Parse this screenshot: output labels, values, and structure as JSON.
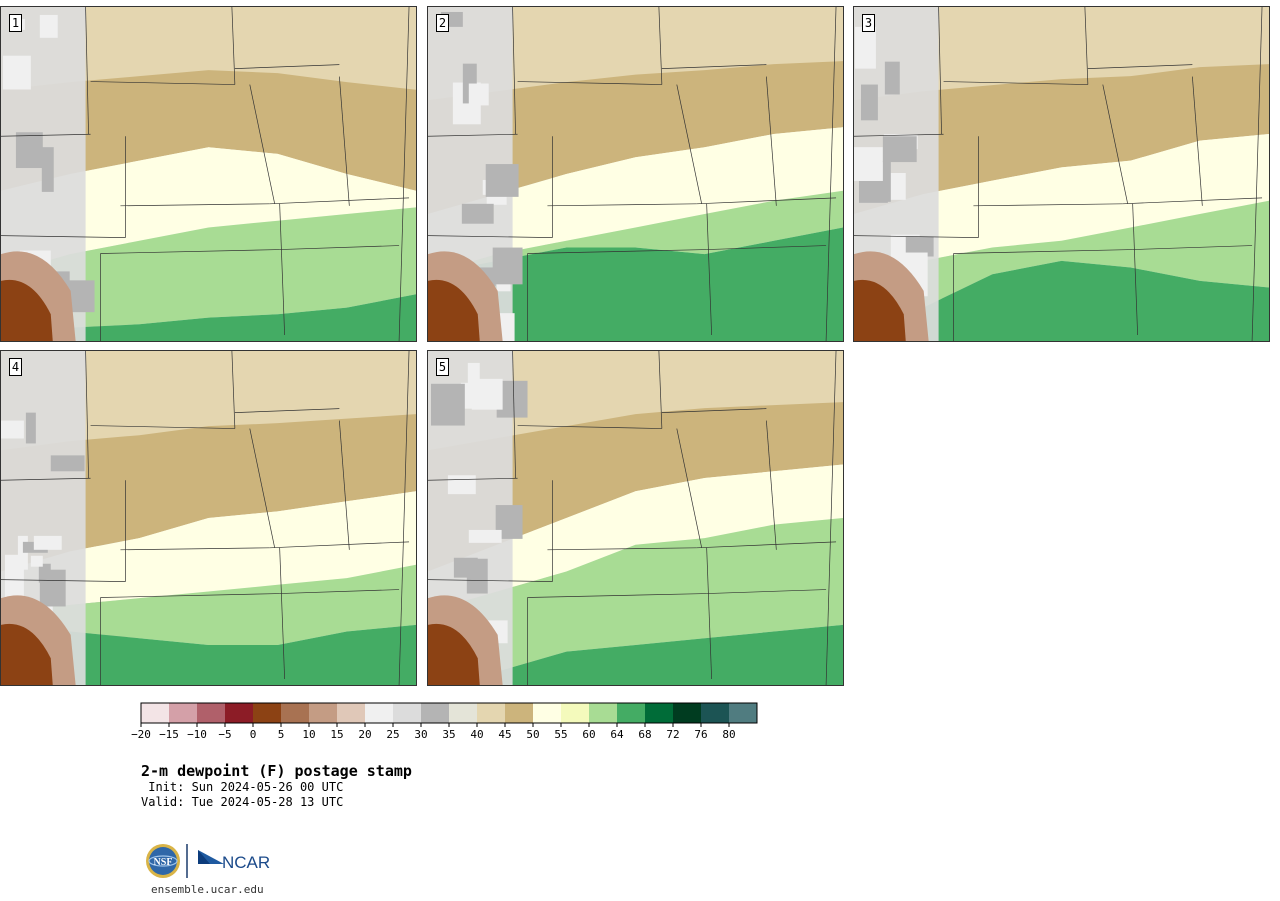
{
  "panels": [
    {
      "label": "1",
      "front": [
        0.55,
        0.5,
        0.46,
        0.42,
        0.44,
        0.5,
        0.55
      ],
      "moist": [
        0.8,
        0.74,
        0.7,
        0.66,
        0.64,
        0.62,
        0.6
      ],
      "deep": [
        0.98,
        0.96,
        0.95,
        0.93,
        0.92,
        0.9,
        0.86
      ]
    },
    {
      "label": "2",
      "front": [
        0.62,
        0.56,
        0.5,
        0.45,
        0.42,
        0.38,
        0.36
      ],
      "moist": [
        0.8,
        0.74,
        0.7,
        0.66,
        0.62,
        0.58,
        0.55
      ],
      "deep": [
        0.8,
        0.76,
        0.72,
        0.72,
        0.74,
        0.7,
        0.66
      ]
    },
    {
      "label": "3",
      "front": [
        0.62,
        0.56,
        0.52,
        0.48,
        0.46,
        0.4,
        0.38
      ],
      "moist": [
        0.82,
        0.76,
        0.72,
        0.7,
        0.66,
        0.62,
        0.58
      ],
      "deep": [
        0.98,
        0.9,
        0.8,
        0.76,
        0.78,
        0.82,
        0.84
      ]
    },
    {
      "label": "4",
      "front": [
        0.66,
        0.6,
        0.56,
        0.5,
        0.48,
        0.45,
        0.42
      ],
      "moist": [
        0.78,
        0.76,
        0.74,
        0.72,
        0.7,
        0.68,
        0.64
      ],
      "deep": [
        0.86,
        0.84,
        0.86,
        0.88,
        0.88,
        0.84,
        0.82
      ]
    },
    {
      "label": "5",
      "front": [
        0.66,
        0.58,
        0.5,
        0.42,
        0.38,
        0.36,
        0.34
      ],
      "moist": [
        0.78,
        0.72,
        0.66,
        0.58,
        0.56,
        0.52,
        0.5
      ],
      "deep": [
        0.98,
        0.96,
        0.9,
        0.88,
        0.86,
        0.84,
        0.82
      ]
    }
  ],
  "colorbar": {
    "colors": [
      "#f3e4e6",
      "#d4a0a8",
      "#b0606a",
      "#8c1c26",
      "#8c4214",
      "#a87252",
      "#c49c84",
      "#e0c8b8",
      "#f0f0f0",
      "#dcdcdc",
      "#b4b4b4",
      "#e4e4d8",
      "#e4d6b0",
      "#ccb47c",
      "#ffffe4",
      "#f4fabc",
      "#a8dc94",
      "#44ac64",
      "#006c38",
      "#003c20",
      "#1c5454",
      "#507c80"
    ],
    "ticks": [
      "−20",
      "−15",
      "−10",
      "−5",
      "0",
      "5",
      "10",
      "15",
      "20",
      "25",
      "30",
      "35",
      "40",
      "45",
      "50",
      "55",
      "60",
      "64",
      "68",
      "72",
      "76",
      "80"
    ]
  },
  "caption": {
    "title": "2-m dewpoint (F) postage stamp",
    "init": " Init: Sun 2024-05-26 00 UTC",
    "valid": "Valid: Tue 2024-05-28 13 UTC"
  },
  "logo": {
    "nsf": "NSF",
    "ncar": "NCAR",
    "url": "ensemble.ucar.edu"
  }
}
